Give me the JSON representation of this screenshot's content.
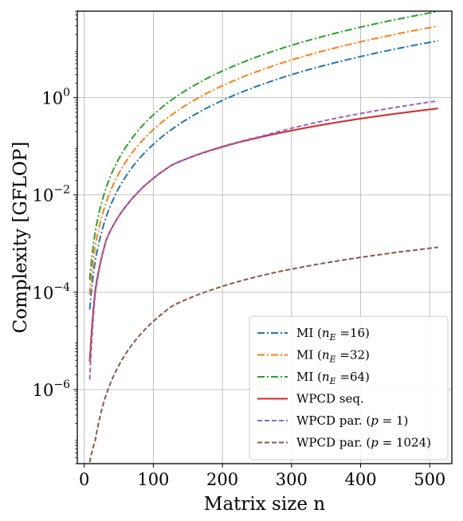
{
  "chart_data": {
    "type": "line",
    "xlabel": "Matrix size n",
    "ylabel": "Complexity [GFLOP]",
    "xscale": "linear",
    "yscale": "log",
    "xlim": [
      -10,
      532
    ],
    "ylim": [
      3e-08,
      60
    ],
    "grid": true,
    "legend_position": "bottom-right",
    "x_ticks": [
      0,
      100,
      200,
      300,
      400,
      500
    ],
    "x_tick_labels": [
      "0",
      "100",
      "200",
      "300",
      "400",
      "500"
    ],
    "y_ticks": [
      1e-06,
      0.0001,
      0.01,
      1
    ],
    "y_tick_labels": [
      {
        "base": "10",
        "exp": "−6"
      },
      {
        "base": "10",
        "exp": "−4"
      },
      {
        "base": "10",
        "exp": "−2"
      },
      {
        "base": "10",
        "exp": "0"
      }
    ],
    "x": [
      8,
      16,
      32,
      64,
      128,
      256,
      512
    ],
    "series": [
      {
        "name": "MI (nE =16)",
        "legend": {
          "pre": "MI (",
          "var": "n",
          "sub": "E",
          "post": " =16)"
        },
        "color": "#1f77b4",
        "dash": "dashdot",
        "values": [
          4.4e-05,
          0.00044,
          0.0036,
          0.029,
          0.23,
          1.84,
          14.7
        ]
      },
      {
        "name": "MI (nE =32)",
        "legend": {
          "pre": "MI (",
          "var": "n",
          "sub": "E",
          "post": " =32)"
        },
        "color": "#ff7f0e",
        "dash": "dashdot",
        "values": [
          9e-05,
          0.00088,
          0.0072,
          0.058,
          0.46,
          3.7,
          29.5
        ]
      },
      {
        "name": "MI (nE =64)",
        "legend": {
          "pre": "MI (",
          "var": "n",
          "sub": "E",
          "post": " =64)"
        },
        "color": "#2ca02c",
        "dash": "dashdot",
        "values": [
          0.00018,
          0.00176,
          0.0144,
          0.116,
          0.93,
          7.4,
          59
        ]
      },
      {
        "name": "WPCD seq.",
        "legend": {
          "pre": "WPCD seq.",
          "var": "",
          "sub": "",
          "post": ""
        },
        "color": "#d62728",
        "dash": "solid",
        "values": [
          3.7e-06,
          0.00011,
          0.0012,
          0.0068,
          0.042,
          0.155,
          0.6
        ]
      },
      {
        "name": "WPCD par. (p = 1)",
        "legend": {
          "pre": "WPCD par. (",
          "var": "p",
          "sub": "",
          "post": " = 1)"
        },
        "color": "#9467bd",
        "dash": "dashed",
        "values": [
          1.6e-06,
          9.5e-05,
          0.0012,
          0.0068,
          0.042,
          0.16,
          0.86
        ]
      },
      {
        "name": "WPCD par. (p = 1024)",
        "legend": {
          "pre": "WPCD par. (",
          "var": "p",
          "sub": "",
          "post": " = 1024)"
        },
        "color": "#8c564b",
        "dash": "dashed",
        "values": [
          3.2e-08,
          9e-08,
          8e-07,
          6.6e-06,
          5.3e-05,
          0.00022,
          0.00084
        ]
      }
    ]
  }
}
